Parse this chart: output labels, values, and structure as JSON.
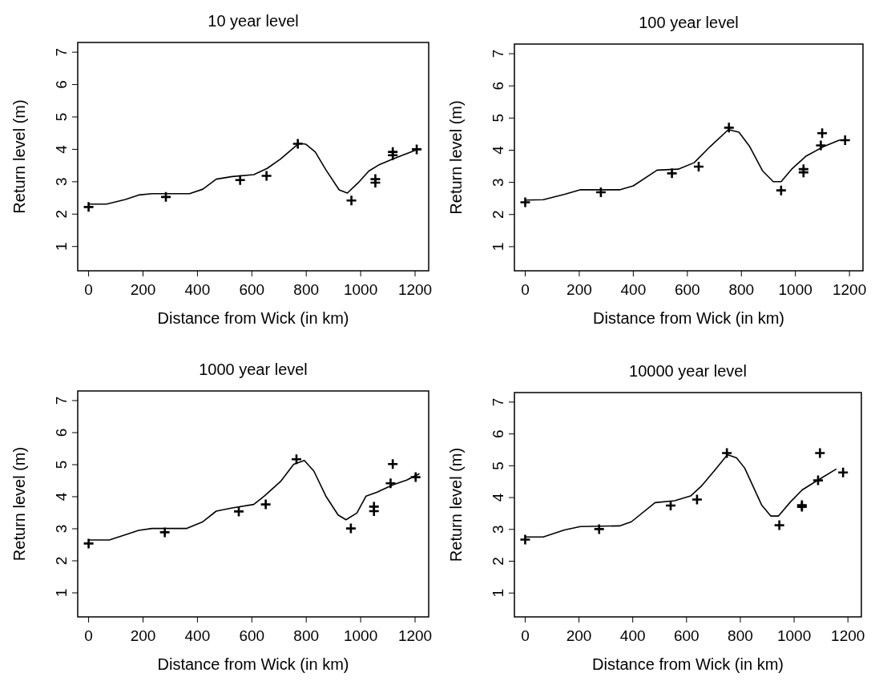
{
  "chart_data": [
    {
      "type": "line",
      "title": "10 year level",
      "xlabel": "Distance from Wick (in km)",
      "ylabel": "Return level (m)",
      "xlim": [
        -40,
        1250
      ],
      "ylim": [
        0.25,
        7.3
      ],
      "xticks": [
        0,
        200,
        400,
        600,
        800,
        1000,
        1200
      ],
      "yticks": [
        1,
        2,
        3,
        4,
        5,
        6,
        7
      ],
      "series": [
        {
          "type": "scatter",
          "marker": "cross",
          "color": "#000000",
          "x": [
            0,
            284,
            557,
            654,
            769,
            966,
            1054,
            1054,
            1118,
            1118,
            1206
          ],
          "values": [
            2.22,
            2.53,
            3.05,
            3.18,
            4.17,
            2.42,
            3.08,
            2.97,
            3.92,
            3.82,
            4.0
          ]
        },
        {
          "type": "line",
          "marker": "none",
          "color": "#000000",
          "x": [
            0,
            66,
            135,
            184,
            233,
            371,
            420,
            469,
            528,
            607,
            656,
            705,
            774,
            798,
            833,
            872,
            921,
            951,
            990,
            1030,
            1069,
            1118,
            1167,
            1216
          ],
          "values": [
            2.31,
            2.31,
            2.45,
            2.59,
            2.63,
            2.63,
            2.77,
            3.08,
            3.16,
            3.22,
            3.41,
            3.7,
            4.19,
            4.16,
            3.92,
            3.37,
            2.75,
            2.65,
            2.96,
            3.33,
            3.53,
            3.7,
            3.86,
            4.02
          ]
        }
      ]
    },
    {
      "type": "line",
      "title": "100 year level",
      "xlabel": "Distance from Wick (in km)",
      "ylabel": "Return level (m)",
      "xlim": [
        -40,
        1250
      ],
      "ylim": [
        0.25,
        7.3
      ],
      "xticks": [
        0,
        200,
        400,
        600,
        800,
        1000,
        1200
      ],
      "yticks": [
        1,
        2,
        3,
        4,
        5,
        6,
        7
      ],
      "series": [
        {
          "type": "scatter",
          "marker": "cross",
          "color": "#000000",
          "x": [
            0,
            280,
            543,
            642,
            754,
            947,
            1030,
            1030,
            1099,
            1094,
            1184
          ],
          "values": [
            2.38,
            2.69,
            3.28,
            3.49,
            4.7,
            2.75,
            3.41,
            3.31,
            4.53,
            4.15,
            4.31
          ]
        },
        {
          "type": "line",
          "marker": "none",
          "color": "#000000",
          "x": [
            0,
            67,
            146,
            205,
            351,
            400,
            488,
            566,
            625,
            684,
            752,
            791,
            831,
            879,
            918,
            947,
            986,
            1040,
            1104,
            1162,
            1191
          ],
          "values": [
            2.45,
            2.46,
            2.63,
            2.77,
            2.77,
            2.89,
            3.38,
            3.41,
            3.61,
            4.11,
            4.64,
            4.56,
            4.11,
            3.35,
            3.02,
            3.02,
            3.41,
            3.82,
            4.11,
            4.31,
            4.31
          ]
        }
      ]
    },
    {
      "type": "line",
      "title": "1000 year level",
      "xlabel": "Distance from Wick (in km)",
      "ylabel": "Return level (m)",
      "xlim": [
        -40,
        1250
      ],
      "ylim": [
        0.25,
        7.3
      ],
      "xticks": [
        0,
        200,
        400,
        600,
        800,
        1000,
        1200
      ],
      "yticks": [
        1,
        2,
        3,
        4,
        5,
        6,
        7
      ],
      "series": [
        {
          "type": "scatter",
          "marker": "cross",
          "color": "#000000",
          "x": [
            0,
            280,
            552,
            651,
            764,
            964,
            1049,
            1049,
            1118,
            1110,
            1202
          ],
          "values": [
            2.54,
            2.89,
            3.54,
            3.76,
            5.17,
            3.01,
            3.69,
            3.55,
            5.02,
            4.42,
            4.61
          ]
        },
        {
          "type": "line",
          "marker": "none",
          "color": "#000000",
          "x": [
            0,
            76,
            135,
            184,
            233,
            361,
            420,
            469,
            528,
            607,
            646,
            705,
            754,
            793,
            828,
            872,
            917,
            946,
            986,
            1020,
            1059,
            1118,
            1167,
            1216
          ],
          "values": [
            2.65,
            2.65,
            2.81,
            2.95,
            3.01,
            3.01,
            3.22,
            3.55,
            3.65,
            3.76,
            4.02,
            4.47,
            5.01,
            5.13,
            4.8,
            4.02,
            3.43,
            3.28,
            3.49,
            4.02,
            4.14,
            4.37,
            4.51,
            4.72
          ]
        }
      ]
    },
    {
      "type": "line",
      "title": "10000 year level",
      "xlabel": "Distance from Wick (in km)",
      "ylabel": "Return level (m)",
      "xlim": [
        -40,
        1250
      ],
      "ylim": [
        0.25,
        7.3
      ],
      "xticks": [
        0,
        200,
        400,
        600,
        800,
        1000,
        1200
      ],
      "yticks": [
        1,
        2,
        3,
        4,
        5,
        6,
        7
      ],
      "series": [
        {
          "type": "scatter",
          "marker": "cross",
          "color": "#000000",
          "x": [
            0,
            275,
            541,
            639,
            750,
            945,
            1029,
            1029,
            1096,
            1089,
            1182
          ],
          "values": [
            2.68,
            3.01,
            3.75,
            3.94,
            5.4,
            3.13,
            3.76,
            3.71,
            5.4,
            4.54,
            4.79
          ]
        },
        {
          "type": "line",
          "marker": "none",
          "color": "#000000",
          "x": [
            0,
            67,
            146,
            205,
            351,
            395,
            483,
            556,
            615,
            654,
            703,
            752,
            786,
            816,
            879,
            913,
            942,
            986,
            1030,
            1089,
            1157
          ],
          "values": [
            2.76,
            2.76,
            2.98,
            3.09,
            3.11,
            3.24,
            3.84,
            3.9,
            4.05,
            4.35,
            4.84,
            5.35,
            5.25,
            4.93,
            3.77,
            3.42,
            3.42,
            3.86,
            4.24,
            4.55,
            4.9
          ]
        }
      ]
    }
  ]
}
